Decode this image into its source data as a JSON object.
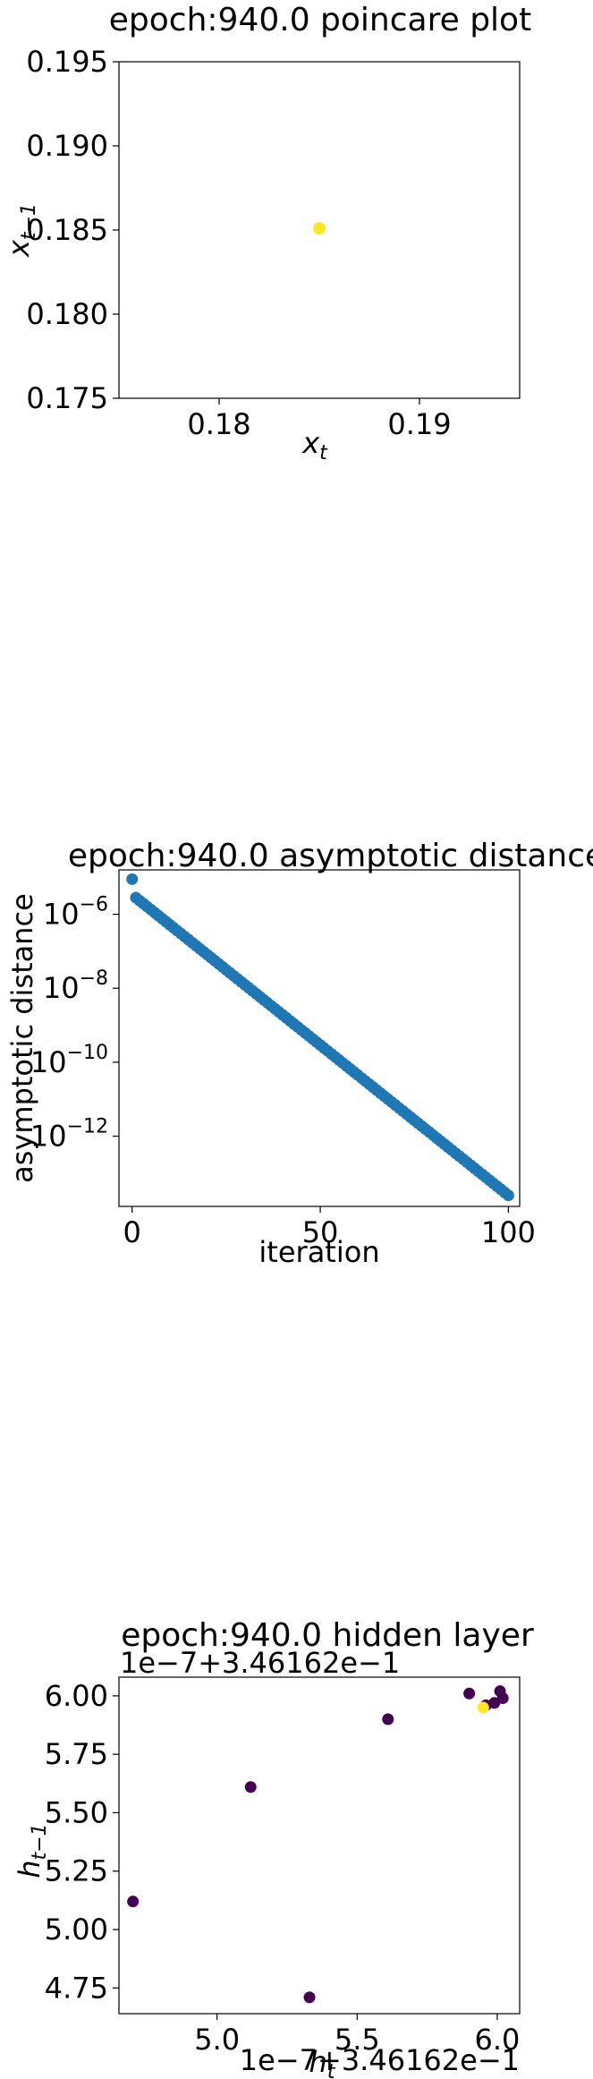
{
  "chart_data": [
    {
      "type": "scatter",
      "title": "epoch:940.0 poincare plot",
      "xlabel_base": "x",
      "xlabel_sub": "t",
      "ylabel_base": "x",
      "ylabel_sub": "t−1",
      "xlim": [
        0.175,
        0.195
      ],
      "ylim": [
        0.175,
        0.195
      ],
      "xticks": [
        0.18,
        0.19
      ],
      "xtick_labels": [
        "0.18",
        "0.19"
      ],
      "yticks": [
        0.175,
        0.18,
        0.185,
        0.19,
        0.195
      ],
      "ytick_labels": [
        "0.175",
        "0.180",
        "0.185",
        "0.190",
        "0.195"
      ],
      "points": [
        {
          "x": 0.185,
          "y": 0.1851
        }
      ],
      "point_color": "#fde725",
      "grid": false
    },
    {
      "type": "scatter",
      "title": "epoch:940.0 asymptotic distance",
      "xlabel": "iteration",
      "ylabel": "asymptotic distance",
      "y_scale": "log",
      "xlim": [
        -3.5,
        103
      ],
      "ylim_log10": [
        -13.9,
        -4.8
      ],
      "xticks": [
        0,
        50,
        100
      ],
      "xtick_labels": [
        "0",
        "50",
        "100"
      ],
      "yticks_log10": [
        -6,
        -8,
        -10,
        -12
      ],
      "ytick_labels_base": "10",
      "ytick_labels_exp": [
        "−6",
        "−8",
        "−10",
        "−12"
      ],
      "series": [
        {
          "model": "exponential-decay",
          "x_start": 0,
          "x_end": 100,
          "count": 101,
          "log10_y_start": -5.05,
          "log10_y_end": -13.6,
          "log10_y_index1": -5.55,
          "color": "#1f77b4"
        }
      ],
      "grid": false
    },
    {
      "type": "scatter",
      "title": "epoch:940.0 hidden layer",
      "xlabel_base": "h",
      "xlabel_sub": "t",
      "ylabel_base": "h",
      "ylabel_sub": "t−1",
      "x_offset_text": "1e−7+3.46162e−1",
      "y_offset_text": "1e−7+3.46162e−1",
      "xlim": [
        4.65,
        6.08
      ],
      "ylim": [
        4.64,
        6.08
      ],
      "xticks": [
        5.0,
        5.5,
        6.0
      ],
      "xtick_labels": [
        "5.0",
        "5.5",
        "6.0"
      ],
      "yticks": [
        4.75,
        5.0,
        5.25,
        5.5,
        5.75,
        6.0
      ],
      "ytick_labels": [
        "4.75",
        "5.00",
        "5.25",
        "5.50",
        "5.75",
        "6.00"
      ],
      "points": [
        {
          "x": 4.7,
          "y": 5.12,
          "c": 0
        },
        {
          "x": 5.12,
          "y": 5.61,
          "c": 0
        },
        {
          "x": 5.33,
          "y": 4.71,
          "c": 0
        },
        {
          "x": 5.61,
          "y": 5.9,
          "c": 0
        },
        {
          "x": 5.9,
          "y": 6.01,
          "c": 0
        },
        {
          "x": 5.99,
          "y": 5.97,
          "c": 0
        },
        {
          "x": 6.01,
          "y": 6.02,
          "c": 0
        },
        {
          "x": 6.02,
          "y": 5.99,
          "c": 0
        },
        {
          "x": 5.96,
          "y": 5.96,
          "c": 0
        },
        {
          "x": 5.95,
          "y": 5.95,
          "c": 1
        }
      ],
      "colormap": [
        "#440154",
        "#fde725"
      ],
      "grid": false
    }
  ]
}
